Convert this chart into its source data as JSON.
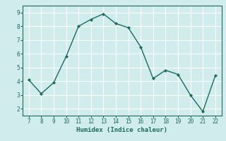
{
  "x": [
    7,
    8,
    9,
    10,
    11,
    12,
    13,
    14,
    15,
    16,
    17,
    18,
    19,
    20,
    21,
    22
  ],
  "y": [
    4.1,
    3.1,
    3.9,
    5.8,
    8.0,
    8.5,
    8.9,
    8.2,
    7.9,
    6.5,
    4.2,
    4.8,
    4.5,
    3.0,
    1.8,
    4.4
  ],
  "xlabel": "Humidex (Indice chaleur)",
  "ylim": [
    1.5,
    9.5
  ],
  "xlim": [
    6.5,
    22.5
  ],
  "yticks": [
    2,
    3,
    4,
    5,
    6,
    7,
    8,
    9
  ],
  "xticks": [
    7,
    8,
    9,
    10,
    11,
    12,
    13,
    14,
    15,
    16,
    17,
    18,
    19,
    20,
    21,
    22
  ],
  "line_color": "#1a6b5e",
  "marker_color": "#1a6b5e",
  "bg_color": "#d0ecec",
  "grid_color": "#ffffff",
  "axis_label_color": "#1a6b5e",
  "tick_color": "#1a6b5e"
}
